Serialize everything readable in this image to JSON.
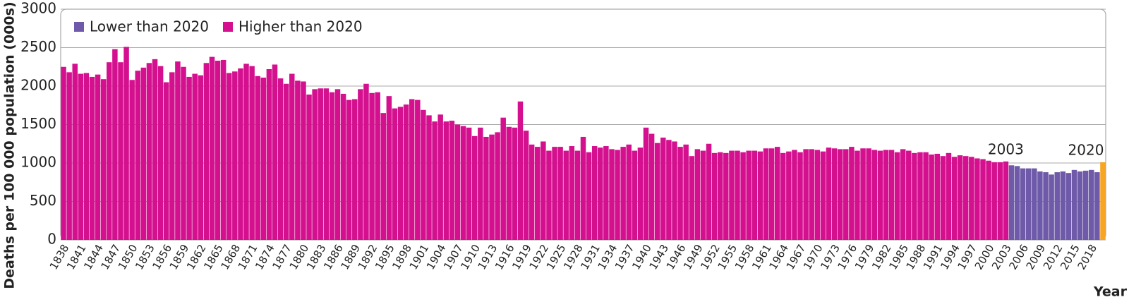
{
  "chart_data": {
    "type": "bar",
    "y_label": "Deaths per 100 000 population (000s)",
    "x_label": "Year",
    "ylim": [
      0,
      3000
    ],
    "yticks": [
      0,
      500,
      1000,
      1500,
      2000,
      2500,
      3000
    ],
    "grid": true,
    "legend": "top-left",
    "annotations": [
      2003,
      2020
    ],
    "categories": [
      1838,
      null,
      null,
      1841,
      null,
      null,
      1844,
      null,
      null,
      1847,
      null,
      null,
      1850,
      null,
      null,
      1853,
      null,
      null,
      1856,
      null,
      null,
      1859,
      null,
      null,
      1862,
      null,
      null,
      1865,
      null,
      null,
      1868,
      null,
      null,
      1871,
      null,
      null,
      1874,
      null,
      null,
      1877,
      null,
      null,
      1880,
      null,
      null,
      1883,
      null,
      null,
      1886,
      null,
      null,
      1889,
      null,
      null,
      1892,
      null,
      null,
      1895,
      null,
      null,
      1898,
      null,
      null,
      1901,
      null,
      null,
      1904,
      null,
      null,
      1907,
      null,
      null,
      1910,
      null,
      null,
      1913,
      null,
      null,
      1916,
      null,
      null,
      1919,
      null,
      null,
      1922,
      null,
      null,
      1925,
      null,
      null,
      1928,
      null,
      null,
      1931,
      null,
      null,
      1934,
      null,
      null,
      1937,
      null,
      null,
      1940,
      null,
      null,
      1943,
      null,
      null,
      1946,
      null,
      null,
      1949,
      null,
      null,
      1952,
      null,
      null,
      1955,
      null,
      null,
      1958,
      null,
      null,
      1961,
      null,
      null,
      1964,
      null,
      null,
      1967,
      null,
      null,
      1970,
      null,
      null,
      1973,
      null,
      null,
      1976,
      null,
      null,
      1979,
      null,
      null,
      1982,
      null,
      null,
      1985,
      null,
      null,
      1988,
      null,
      null,
      1991,
      null,
      null,
      1994,
      null,
      null,
      1997,
      null,
      null,
      2000,
      null,
      null,
      2003,
      null,
      null,
      2006,
      null,
      null,
      2009,
      null,
      null,
      2012,
      null,
      null,
      2015,
      null,
      null,
      2018,
      null,
      null
    ],
    "series": [
      {
        "name": "Lower than 2020",
        "color": "#6e5aa8",
        "values": [
          null,
          null,
          null,
          null,
          null,
          null,
          null,
          null,
          null,
          null,
          null,
          null,
          null,
          null,
          null,
          null,
          null,
          null,
          null,
          null,
          null,
          null,
          null,
          null,
          null,
          null,
          null,
          null,
          null,
          null,
          null,
          null,
          null,
          null,
          null,
          null,
          null,
          null,
          null,
          null,
          null,
          null,
          null,
          null,
          null,
          null,
          null,
          null,
          null,
          null,
          null,
          null,
          null,
          null,
          null,
          null,
          null,
          null,
          null,
          null,
          null,
          null,
          null,
          null,
          null,
          null,
          null,
          null,
          null,
          null,
          null,
          null,
          null,
          null,
          null,
          null,
          null,
          null,
          null,
          null,
          null,
          null,
          null,
          null,
          null,
          null,
          null,
          null,
          null,
          null,
          null,
          null,
          null,
          null,
          null,
          null,
          null,
          null,
          null,
          null,
          null,
          null,
          null,
          null,
          null,
          null,
          null,
          null,
          null,
          null,
          null,
          null,
          null,
          null,
          null,
          null,
          null,
          null,
          null,
          null,
          null,
          null,
          null,
          null,
          null,
          null,
          null,
          null,
          null,
          null,
          null,
          null,
          null,
          null,
          null,
          null,
          null,
          null,
          null,
          null,
          null,
          null,
          null,
          null,
          null,
          null,
          null,
          null,
          null,
          null,
          null,
          null,
          null,
          null,
          null,
          null,
          null,
          null,
          null,
          null,
          null,
          null,
          null,
          null,
          null,
          null,
          970,
          960,
          930,
          930,
          930,
          890,
          880,
          850,
          880,
          890,
          870,
          910,
          890,
          900,
          910,
          880,
          null
        ]
      },
      {
        "name": "Higher than 2020",
        "color": "#d4108f",
        "values": [
          2250,
          2180,
          2290,
          2160,
          2170,
          2120,
          2150,
          2090,
          2310,
          2480,
          2310,
          2510,
          2080,
          2200,
          2240,
          2300,
          2350,
          2260,
          2050,
          2180,
          2320,
          2250,
          2120,
          2160,
          2140,
          2300,
          2380,
          2330,
          2340,
          2170,
          2190,
          2230,
          2290,
          2260,
          2130,
          2110,
          2220,
          2280,
          2100,
          2030,
          2160,
          2070,
          2060,
          1890,
          1960,
          1970,
          1970,
          1920,
          1960,
          1900,
          1820,
          1830,
          1960,
          2030,
          1910,
          1920,
          1650,
          1870,
          1710,
          1730,
          1760,
          1830,
          1820,
          1690,
          1620,
          1540,
          1630,
          1540,
          1550,
          1500,
          1480,
          1460,
          1350,
          1460,
          1340,
          1370,
          1400,
          1590,
          1470,
          1460,
          1800,
          1420,
          1240,
          1210,
          1280,
          1160,
          1210,
          1210,
          1160,
          1220,
          1160,
          1340,
          1140,
          1220,
          1200,
          1220,
          1180,
          1170,
          1210,
          1240,
          1160,
          1200,
          1460,
          1380,
          1260,
          1330,
          1300,
          1280,
          1210,
          1240,
          1090,
          1180,
          1160,
          1250,
          1130,
          1140,
          1130,
          1160,
          1160,
          1140,
          1160,
          1160,
          1150,
          1190,
          1190,
          1210,
          1130,
          1150,
          1170,
          1140,
          1180,
          1180,
          1170,
          1150,
          1200,
          1190,
          1180,
          1180,
          1210,
          1160,
          1190,
          1190,
          1170,
          1160,
          1170,
          1170,
          1140,
          1180,
          1160,
          1130,
          1140,
          1140,
          1110,
          1120,
          1090,
          1130,
          1080,
          1100,
          1090,
          1080,
          1060,
          1050,
          1030,
          1010,
          1010,
          1020,
          null,
          null,
          null,
          null,
          null,
          null,
          null,
          null,
          null,
          null,
          null,
          null,
          null,
          null,
          null,
          null,
          null
        ]
      },
      {
        "color": "#f6a623",
        "values": [
          null,
          null,
          null,
          null,
          null,
          null,
          null,
          null,
          null,
          null,
          null,
          null,
          null,
          null,
          null,
          null,
          null,
          null,
          null,
          null,
          null,
          null,
          null,
          null,
          null,
          null,
          null,
          null,
          null,
          null,
          null,
          null,
          null,
          null,
          null,
          null,
          null,
          null,
          null,
          null,
          null,
          null,
          null,
          null,
          null,
          null,
          null,
          null,
          null,
          null,
          null,
          null,
          null,
          null,
          null,
          null,
          null,
          null,
          null,
          null,
          null,
          null,
          null,
          null,
          null,
          null,
          null,
          null,
          null,
          null,
          null,
          null,
          null,
          null,
          null,
          null,
          null,
          null,
          null,
          null,
          null,
          null,
          null,
          null,
          null,
          null,
          null,
          null,
          null,
          null,
          null,
          null,
          null,
          null,
          null,
          null,
          null,
          null,
          null,
          null,
          null,
          null,
          null,
          null,
          null,
          null,
          null,
          null,
          null,
          null,
          null,
          null,
          null,
          null,
          null,
          null,
          null,
          null,
          null,
          null,
          null,
          null,
          null,
          null,
          null,
          null,
          null,
          null,
          null,
          null,
          null,
          null,
          null,
          null,
          null,
          null,
          null,
          null,
          null,
          null,
          null,
          null,
          null,
          null,
          null,
          null,
          null,
          null,
          null,
          null,
          null,
          null,
          null,
          null,
          null,
          null,
          null,
          null,
          null,
          null,
          null,
          null,
          null,
          null,
          null,
          null,
          null,
          null,
          null,
          null,
          null,
          null,
          null,
          null,
          null,
          null,
          null,
          null,
          null,
          null,
          null,
          null,
          1010
        ]
      }
    ]
  }
}
